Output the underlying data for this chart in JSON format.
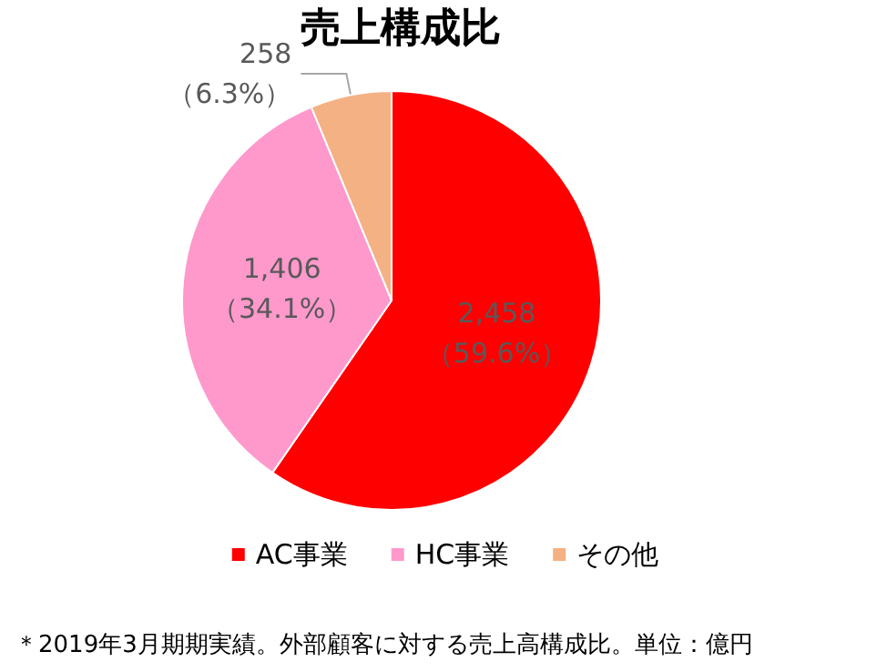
{
  "chart_data": {
    "type": "pie",
    "title": "売上構成比",
    "categories": [
      "AC事業",
      "HC事業",
      "その他"
    ],
    "values": [
      2458,
      1406,
      258
    ],
    "colors": [
      "#ff0000",
      "#ff99cc",
      "#f4b183"
    ],
    "value_labels": [
      "2,458\n（59.6%）",
      "1,406\n（34.1%）",
      "258\n（6.3%）"
    ],
    "legend": "bottom",
    "annotations": [
      "＊2019年3月期期実績。外部顧客に対する売上高構成比。単位：億円"
    ]
  }
}
